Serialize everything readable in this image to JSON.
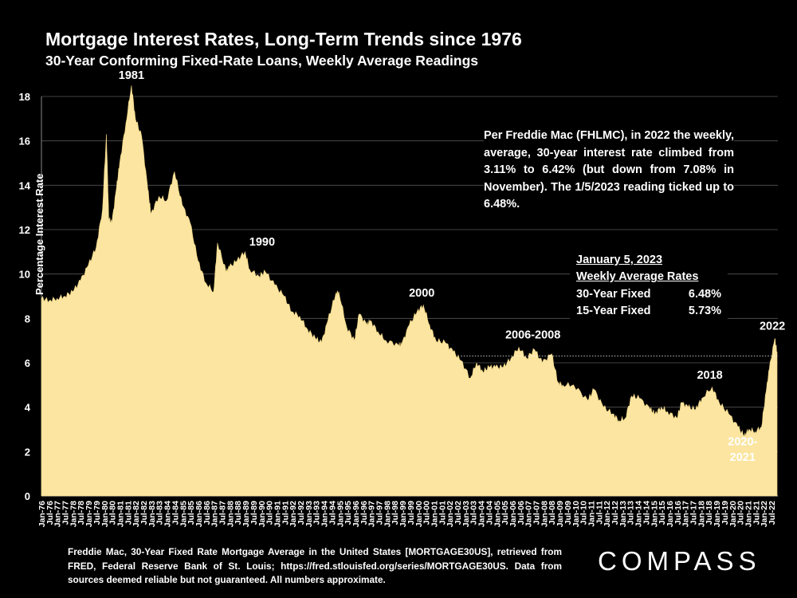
{
  "header": {
    "title": "Mortgage Interest Rates, Long-Term Trends since 1976",
    "subtitle": "30-Year Conforming Fixed-Rate Loans, Weekly Average Readings"
  },
  "note": "Per Freddie Mac (FHLMC), in 2022 the weekly, average, 30-year interest rate climbed from 3.11% to 6.42% (but down from 7.08% in November). The 1/5/2023 reading ticked up to 6.48%.",
  "rates_box": {
    "heading": "January 5, 2023",
    "subheading": "Weekly Average Rates",
    "rows": [
      {
        "label": "30-Year Fixed",
        "value": "6.48%"
      },
      {
        "label": "15-Year Fixed",
        "value": "5.73%"
      }
    ]
  },
  "footer": {
    "source": "Freddie Mac, 30-Year Fixed Rate Mortgage Average in the United States [MORTGAGE30US], retrieved from FRED, Federal Reserve Bank of St. Louis; https://fred.stlouisfed.org/series/MORTGAGE30US. Data from sources deemed reliable but not guaranteed. All numbers approximate.",
    "brand": "COMPASS"
  },
  "colors": {
    "area": "#FBE5A0",
    "background": "#000000",
    "text": "#FFFFFF",
    "grid": "#555555"
  },
  "chart_data": {
    "type": "area",
    "title": "Mortgage Interest Rates, Long-Term Trends since 1976",
    "ylabel": "Percentage Interest Rate",
    "xlabel": "",
    "ylim": [
      0,
      18
    ],
    "yticks": [
      0,
      2,
      4,
      6,
      8,
      10,
      12,
      14,
      16,
      18
    ],
    "grid": true,
    "xlim": [
      1976.0,
      2023.05
    ],
    "reference_line": {
      "value": 6.3,
      "from": 2002.8,
      "to": 2023.05
    },
    "x": [
      1976.0,
      1976.5,
      1977.0,
      1977.5,
      1978.0,
      1978.5,
      1979.0,
      1979.5,
      1979.9,
      1980.15,
      1980.3,
      1980.5,
      1980.8,
      1981.0,
      1981.4,
      1981.75,
      1982.0,
      1982.4,
      1982.8,
      1983.0,
      1983.5,
      1984.0,
      1984.5,
      1985.0,
      1985.5,
      1986.0,
      1986.5,
      1987.0,
      1987.25,
      1987.8,
      1988.0,
      1988.5,
      1989.0,
      1989.3,
      1989.9,
      1990.3,
      1990.9,
      1991.5,
      1992.0,
      1992.5,
      1993.0,
      1993.5,
      1993.9,
      1994.3,
      1994.8,
      1995.0,
      1995.5,
      1996.0,
      1996.3,
      1996.8,
      1997.0,
      1997.5,
      1998.0,
      1998.8,
      1999.0,
      1999.5,
      2000.0,
      2000.4,
      2000.8,
      2001.2,
      2001.8,
      2002.3,
      2002.8,
      2003.4,
      2003.8,
      2004.2,
      2004.6,
      2005.0,
      2005.5,
      2006.0,
      2006.5,
      2007.0,
      2007.5,
      2008.0,
      2008.6,
      2009.0,
      2009.3,
      2010.0,
      2010.9,
      2011.3,
      2011.9,
      2012.5,
      2012.9,
      2013.3,
      2013.7,
      2014.2,
      2014.9,
      2015.2,
      2015.6,
      2016.0,
      2016.6,
      2016.9,
      2017.3,
      2017.8,
      2018.2,
      2018.85,
      2019.3,
      2019.9,
      2020.5,
      2020.9,
      2021.2,
      2021.6,
      2022.0,
      2022.3,
      2022.5,
      2022.85,
      2023.0
    ],
    "y": [
      8.9,
      8.8,
      8.9,
      9.0,
      9.2,
      9.7,
      10.4,
      11.2,
      12.9,
      16.3,
      12.5,
      12.3,
      13.9,
      15.0,
      16.8,
      18.5,
      17.0,
      16.2,
      13.8,
      12.7,
      13.5,
      13.3,
      14.6,
      13.1,
      12.3,
      10.6,
      9.6,
      9.2,
      11.4,
      10.1,
      10.3,
      10.6,
      11.0,
      10.2,
      9.9,
      10.1,
      9.5,
      9.0,
      8.3,
      8.1,
      7.5,
      7.1,
      6.9,
      7.9,
      9.1,
      9.2,
      7.6,
      7.0,
      8.2,
      7.7,
      7.9,
      7.4,
      7.0,
      6.8,
      6.8,
      7.7,
      8.3,
      8.6,
      7.7,
      7.0,
      6.9,
      6.5,
      6.1,
      5.3,
      6.0,
      5.6,
      5.8,
      5.8,
      5.8,
      6.2,
      6.7,
      6.2,
      6.6,
      6.0,
      6.4,
      5.1,
      5.0,
      5.0,
      4.3,
      4.8,
      4.0,
      3.7,
      3.4,
      3.5,
      4.5,
      4.4,
      3.9,
      3.7,
      4.0,
      3.8,
      3.5,
      4.2,
      4.0,
      3.9,
      4.4,
      4.9,
      4.2,
      3.7,
      3.1,
      2.7,
      3.0,
      2.9,
      3.1,
      4.7,
      5.7,
      7.08,
      6.48
    ],
    "xtick_labels": [
      "Jan-76",
      "Jul-76",
      "Jan-77",
      "Jul-77",
      "Jan-78",
      "Jul-78",
      "Jan-79",
      "Jul-79",
      "Jan-80",
      "Jul-80",
      "Jan-81",
      "Jul-81",
      "Jan-82",
      "Jul-82",
      "Jan-83",
      "Jul-83",
      "Jan-84",
      "Jul-84",
      "Jan-85",
      "Jul-85",
      "Jan-86",
      "Jul-86",
      "Jan-87",
      "Jul-87",
      "Jan-88",
      "Jul-88",
      "Jan-89",
      "Jul-89",
      "Jan-90",
      "Jul-90",
      "Jan-91",
      "Jul-91",
      "Jan-92",
      "Jul-92",
      "Jan-93",
      "Jul-93",
      "Jan-94",
      "Jul-94",
      "Jan-95",
      "Jul-95",
      "Jan-96",
      "Jul-96",
      "Jan-97",
      "Jul-97",
      "Jan-98",
      "Jul-98",
      "Jan-99",
      "Jul-99",
      "Jan-00",
      "Jul-00",
      "Jan-01",
      "Jul-01",
      "Jan-02",
      "Jul-02",
      "Jan-03",
      "Jul-03",
      "Jan-04",
      "Jul-04",
      "Jan-05",
      "Jul-05",
      "Jan-06",
      "Jul-06",
      "Jan-07",
      "Jul-07",
      "Jan-08",
      "Jul-08",
      "Jan-09",
      "Jul-09",
      "Jan-10",
      "Jul-10",
      "Jan-11",
      "Jul-11",
      "Jan-12",
      "Jul-12",
      "Jan-13",
      "Jul-13",
      "Jan-14",
      "Jul-14",
      "Jan-15",
      "Jul-15",
      "Jan-16",
      "Jul-16",
      "Jan-17",
      "Jul-17",
      "Jan-18",
      "Jul-18",
      "Jan-19",
      "Jul-19",
      "Jan-20",
      "Jul-20",
      "Jan-21",
      "Jul-21",
      "Jan-22",
      "Jul-22"
    ],
    "annotations": [
      {
        "text": "1981",
        "x": 1981.75,
        "y": 18.5
      },
      {
        "text": "1990",
        "x": 1990.1,
        "y": 11.0
      },
      {
        "text": "2000",
        "x": 2000.3,
        "y": 8.7
      },
      {
        "text": "2006-2008",
        "x": 2007.4,
        "y": 6.8
      },
      {
        "text": "2018",
        "x": 2018.7,
        "y": 5.0
      },
      {
        "text": "2022",
        "x": 2022.7,
        "y": 7.2
      },
      {
        "text": "2020-",
        "x": 2020.8,
        "y": 2.0
      },
      {
        "text": "2021",
        "x": 2020.8,
        "y": 1.3
      }
    ]
  }
}
